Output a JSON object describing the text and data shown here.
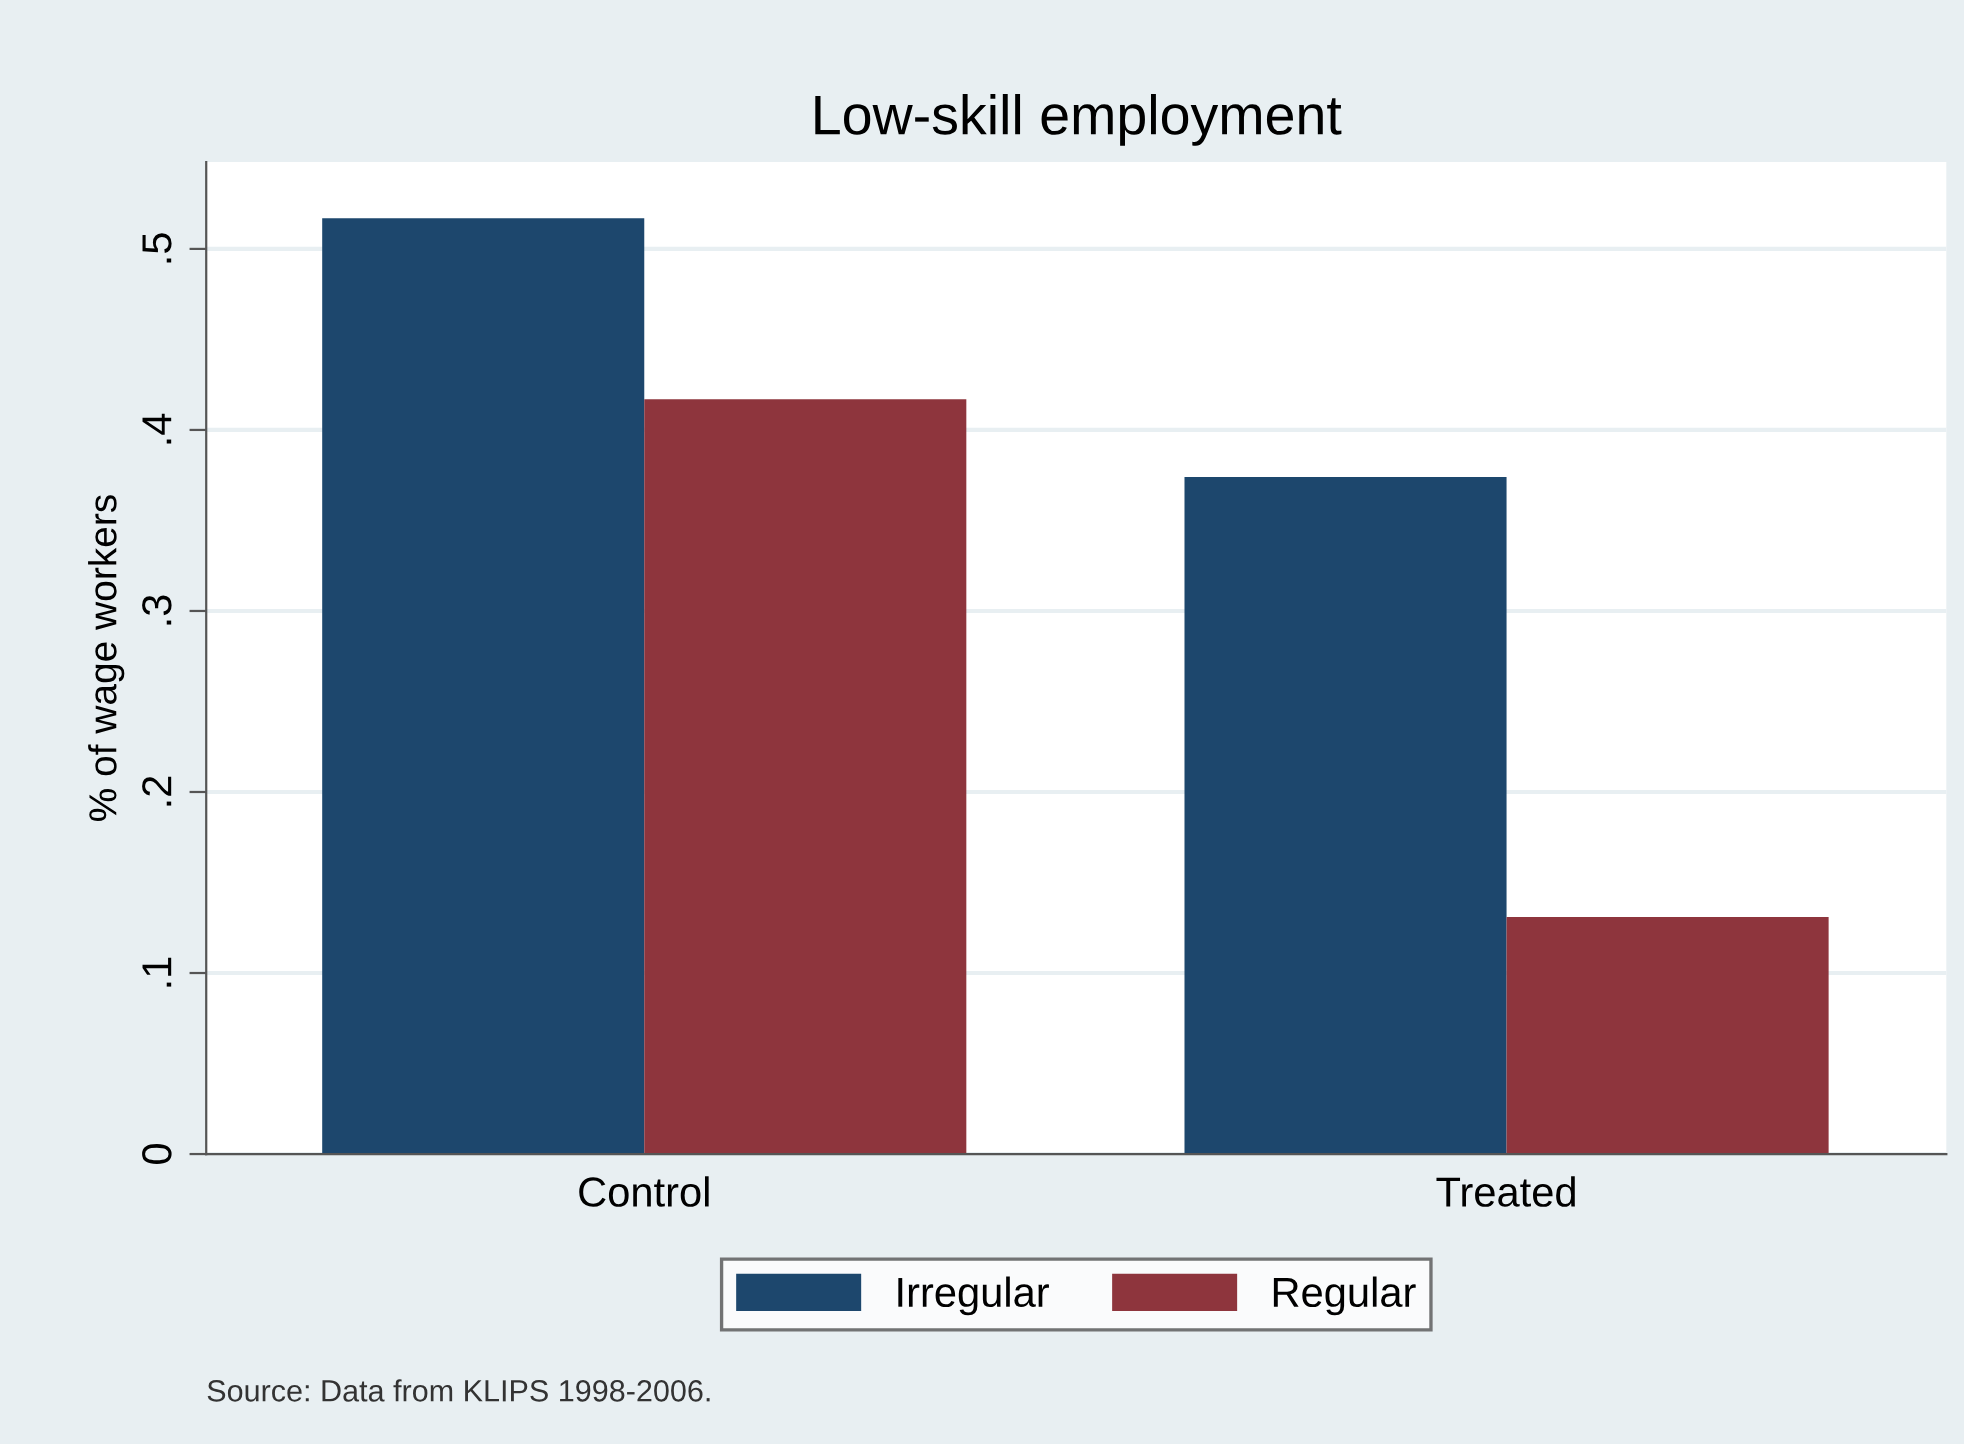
{
  "chart_data": {
    "type": "bar",
    "title": "Low-skill employment",
    "ylabel": "% of wage workers",
    "categories": [
      "Control",
      "Treated"
    ],
    "series": [
      {
        "name": "Irregular",
        "color": "#1d476d",
        "values": [
          0.517,
          0.374
        ]
      },
      {
        "name": "Regular",
        "color": "#8e353d",
        "values": [
          0.417,
          0.131
        ]
      }
    ],
    "ylim": [
      0,
      0.548
    ],
    "yticks": [
      0,
      {
        "value": 0.1,
        "label": ".1"
      },
      {
        "value": 0.2,
        "label": ".2"
      },
      {
        "value": 0.3,
        "label": ".3"
      },
      {
        "value": 0.4,
        "label": ".4"
      },
      {
        "value": 0.5,
        "label": ".5"
      }
    ],
    "grid": "y",
    "legend": "bottom",
    "annotations": [
      "Source: Data from KLIPS 1998-2006."
    ]
  }
}
